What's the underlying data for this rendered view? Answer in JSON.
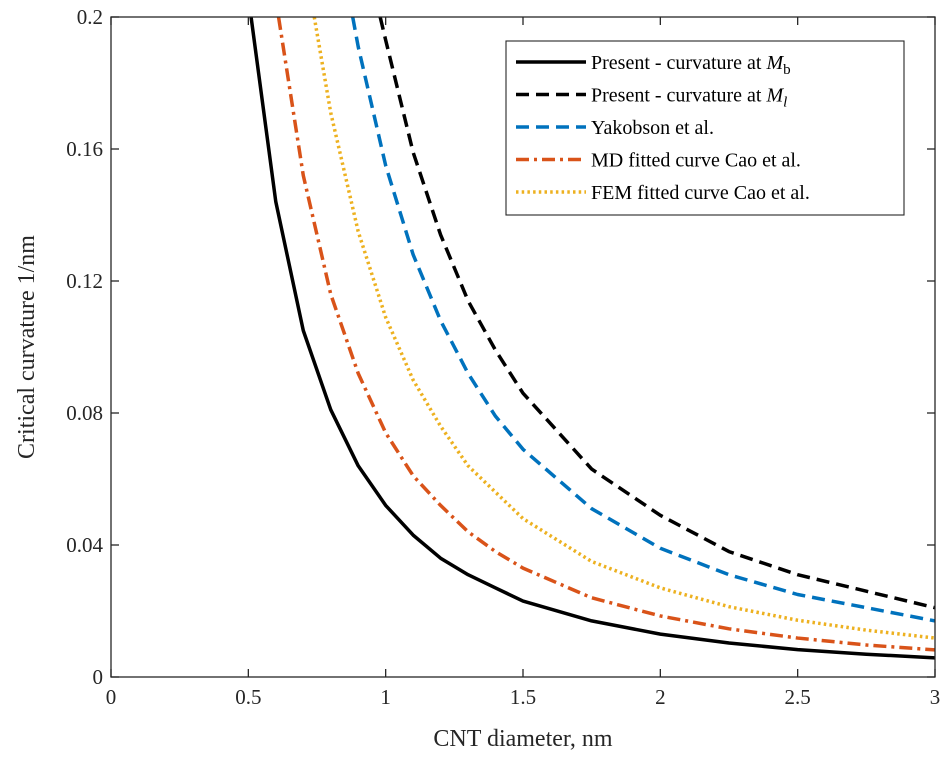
{
  "chart_data": {
    "type": "line",
    "title": "",
    "xlabel": "CNT diameter, nm",
    "ylabel": "Critical curvature 1/nm",
    "xlim": [
      0,
      3
    ],
    "ylim": [
      0,
      0.2
    ],
    "xticks": [
      0,
      0.5,
      1,
      1.5,
      2,
      2.5,
      3
    ],
    "xtick_labels": [
      "0",
      "0.5",
      "1",
      "1.5",
      "2",
      "2.5",
      "3"
    ],
    "yticks": [
      0,
      0.04,
      0.08,
      0.12,
      0.16,
      0.2
    ],
    "ytick_labels": [
      "0",
      "0.04",
      "0.08",
      "0.12",
      "0.16",
      "0.2"
    ],
    "grid": false,
    "legend_position": "top-right",
    "series": [
      {
        "name": "Present - curvature at M_b",
        "label_main": "Present - curvature at ",
        "label_sym": "M",
        "label_sub": "b",
        "color": "#000000",
        "style": "solid",
        "x": [
          0.51,
          0.6,
          0.7,
          0.8,
          0.9,
          1.0,
          1.1,
          1.2,
          1.3,
          1.4,
          1.5,
          1.75,
          2.0,
          2.25,
          2.5,
          2.75,
          3.0
        ],
        "y": [
          0.2,
          0.144,
          0.105,
          0.081,
          0.064,
          0.052,
          0.043,
          0.036,
          0.031,
          0.027,
          0.023,
          0.017,
          0.013,
          0.0103,
          0.0083,
          0.0069,
          0.0058
        ]
      },
      {
        "name": "Present - curvature at M_l",
        "label_main": "Present - curvature at ",
        "label_sym": "M",
        "label_sub": "l",
        "color": "#000000",
        "style": "dashed",
        "x": [
          0.98,
          1.0,
          1.1,
          1.2,
          1.3,
          1.4,
          1.5,
          1.75,
          2.0,
          2.25,
          2.5,
          2.75,
          3.0
        ],
        "y": [
          0.2,
          0.193,
          0.159,
          0.134,
          0.114,
          0.099,
          0.086,
          0.063,
          0.049,
          0.038,
          0.031,
          0.026,
          0.021
        ]
      },
      {
        "name": "Yakobson et al.",
        "label_main": "Yakobson et al.",
        "color": "#0072BD",
        "style": "dashed",
        "x": [
          0.88,
          0.9,
          1.0,
          1.1,
          1.2,
          1.3,
          1.4,
          1.5,
          1.75,
          2.0,
          2.25,
          2.5,
          2.75,
          3.0
        ],
        "y": [
          0.2,
          0.191,
          0.155,
          0.128,
          0.108,
          0.092,
          0.079,
          0.069,
          0.051,
          0.039,
          0.031,
          0.025,
          0.021,
          0.017
        ]
      },
      {
        "name": "MD fitted curve Cao et al.",
        "label_main": "MD fitted curve Cao et al.",
        "color": "#D95319",
        "style": "dashdot",
        "x": [
          0.61,
          0.7,
          0.8,
          0.9,
          1.0,
          1.1,
          1.2,
          1.3,
          1.4,
          1.5,
          1.75,
          2.0,
          2.25,
          2.5,
          2.75,
          3.0
        ],
        "y": [
          0.2,
          0.152,
          0.116,
          0.092,
          0.074,
          0.061,
          0.052,
          0.044,
          0.038,
          0.033,
          0.024,
          0.0185,
          0.0146,
          0.0118,
          0.0097,
          0.0082
        ]
      },
      {
        "name": "FEM fitted curve Cao et al.",
        "label_main": "FEM fitted curve Cao et al.",
        "color": "#EDB120",
        "style": "dotted",
        "x": [
          0.74,
          0.8,
          0.9,
          1.0,
          1.1,
          1.2,
          1.3,
          1.4,
          1.5,
          1.75,
          2.0,
          2.25,
          2.5,
          2.75,
          3.0
        ],
        "y": [
          0.2,
          0.171,
          0.135,
          0.109,
          0.09,
          0.076,
          0.064,
          0.056,
          0.048,
          0.035,
          0.027,
          0.0213,
          0.0172,
          0.0142,
          0.0118
        ]
      }
    ]
  }
}
